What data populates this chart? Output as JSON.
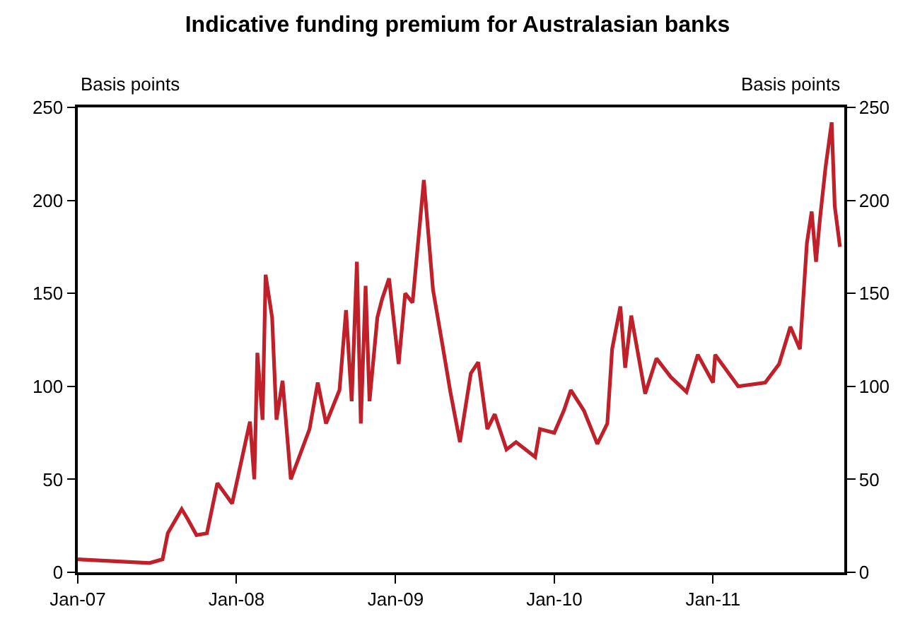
{
  "chart_data": {
    "type": "line",
    "title": "Indicative funding premium for Australasian banks",
    "ylabel": "Basis points",
    "y2label": "Basis points",
    "x": [
      "2007-01-01",
      "2007-06-15",
      "2007-07-15",
      "2007-07-27",
      "2007-08-28",
      "2007-09-10",
      "2007-10-01",
      "2007-10-25",
      "2007-11-18",
      "2007-12-22",
      "2008-01-05",
      "2008-02-01",
      "2008-02-11",
      "2008-02-18",
      "2008-03-01",
      "2008-03-08",
      "2008-03-23",
      "2008-04-02",
      "2008-04-16",
      "2008-05-05",
      "2008-06-17",
      "2008-07-06",
      "2008-07-25",
      "2008-08-25",
      "2008-09-09",
      "2008-09-22",
      "2008-10-04",
      "2008-10-13",
      "2008-10-24",
      "2008-11-02",
      "2008-11-20",
      "2008-12-01",
      "2008-12-17",
      "2009-01-08",
      "2009-01-23",
      "2009-02-09",
      "2009-03-07",
      "2009-03-28",
      "2009-04-19",
      "2009-05-07",
      "2009-05-29",
      "2009-06-23",
      "2009-07-10",
      "2009-07-31",
      "2009-08-17",
      "2009-09-13",
      "2009-10-05",
      "2009-11-18",
      "2009-11-29",
      "2010-01-01",
      "2010-01-23",
      "2010-02-08",
      "2010-03-10",
      "2010-04-10",
      "2010-05-03",
      "2010-05-14",
      "2010-06-02",
      "2010-06-13",
      "2010-06-27",
      "2010-07-29",
      "2010-08-24",
      "2010-09-26",
      "2010-11-01",
      "2010-11-27",
      "2011-01-01",
      "2011-01-06",
      "2011-02-28",
      "2011-05-01",
      "2011-06-02",
      "2011-06-28",
      "2011-07-20",
      "2011-08-05",
      "2011-08-16",
      "2011-08-26",
      "2011-09-04",
      "2011-09-17",
      "2011-10-01",
      "2011-10-08",
      "2011-10-20"
    ],
    "series": [
      {
        "color": "#c0202a",
        "values": [
          7,
          5,
          7,
          21,
          34,
          29,
          20,
          21,
          48,
          37,
          52,
          81,
          50,
          118,
          82,
          160,
          137,
          82,
          103,
          50,
          77,
          102,
          80,
          98,
          141,
          92,
          167,
          80,
          154,
          92,
          137,
          147,
          158,
          112,
          150,
          145,
          211,
          152,
          122,
          97,
          70,
          107,
          113,
          77,
          85,
          66,
          70,
          62,
          77,
          75,
          87,
          98,
          87,
          69,
          80,
          120,
          143,
          110,
          138,
          96,
          115,
          105,
          97,
          117,
          102,
          117,
          100,
          102,
          112,
          132,
          120,
          177,
          194,
          167,
          190,
          218,
          242,
          197,
          175
        ]
      }
    ],
    "xlim": [
      "2007-01-01",
      "2011-10-30"
    ],
    "xticks": [
      {
        "value": "2007-01-01",
        "label": "Jan-07"
      },
      {
        "value": "2008-01-01",
        "label": "Jan-08"
      },
      {
        "value": "2009-01-01",
        "label": "Jan-09"
      },
      {
        "value": "2010-01-01",
        "label": "Jan-10"
      },
      {
        "value": "2011-01-01",
        "label": "Jan-11"
      }
    ],
    "ylim": [
      0,
      250
    ],
    "yticks": [
      0,
      50,
      100,
      150,
      200,
      250
    ],
    "y2lim": [
      0,
      250
    ],
    "y2ticks": [
      0,
      50,
      100,
      150,
      200,
      250
    ],
    "legend": false,
    "marker": "none",
    "line_style": "solid"
  }
}
